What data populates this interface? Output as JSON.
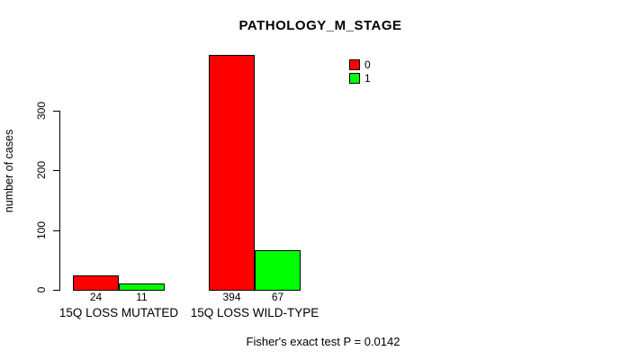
{
  "figure": {
    "background": "#FFFFFF",
    "text_color": "#000000"
  },
  "chart_data": {
    "type": "bar",
    "title": "PATHOLOGY_M_STAGE",
    "xlabel": "",
    "ylabel": "number of cases",
    "ylim": [
      0,
      300
    ],
    "yticks": [
      0,
      100,
      200,
      300
    ],
    "grid": false,
    "legend_position": "top-right",
    "bar_border_color": "#000000",
    "categories": [
      "15Q LOSS MUTATED",
      "15Q LOSS WILD-TYPE"
    ],
    "series": [
      {
        "name": "0",
        "color": "#FF0000",
        "values": [
          24,
          394
        ]
      },
      {
        "name": "1",
        "color": "#00FF00",
        "values": [
          11,
          67
        ]
      }
    ],
    "bar_value_labels": [
      [
        "24",
        "11"
      ],
      [
        "394",
        "67"
      ]
    ],
    "annotation": "Fisher's exact test P = 0.0142"
  }
}
